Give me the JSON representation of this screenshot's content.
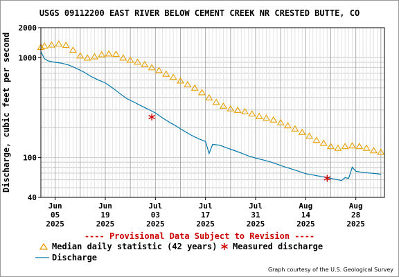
{
  "chart_data": {
    "type": "line",
    "title": "USGS 09112200 EAST RIVER BELOW CEMENT CREEK NR CRESTED BUTTE, CO",
    "ylabel": "Discharge, cubic feet per second",
    "y_scale": "log",
    "ylim": [
      40,
      2000
    ],
    "y_ticks": [
      {
        "value": 2000,
        "label": "2000"
      },
      {
        "value": 1000,
        "label": "1000"
      },
      {
        "value": 100,
        "label": "100"
      },
      {
        "value": 40,
        "label": "40"
      }
    ],
    "xlim": [
      "2025-06-01",
      "2025-09-05"
    ],
    "x_ticks": [
      {
        "date": "2025-06-05",
        "month": "Jun",
        "day": "05",
        "year": "2025"
      },
      {
        "date": "2025-06-19",
        "month": "Jun",
        "day": "19",
        "year": "2025"
      },
      {
        "date": "2025-07-03",
        "month": "Jul",
        "day": "03",
        "year": "2025"
      },
      {
        "date": "2025-07-17",
        "month": "Jul",
        "day": "17",
        "year": "2025"
      },
      {
        "date": "2025-07-31",
        "month": "Jul",
        "day": "31",
        "year": "2025"
      },
      {
        "date": "2025-08-14",
        "month": "Aug",
        "day": "14",
        "year": "2025"
      },
      {
        "date": "2025-08-28",
        "month": "Aug",
        "day": "28",
        "year": "2025"
      }
    ],
    "grid": true,
    "series": [
      {
        "name": "Median daily statistic (42 years)",
        "color": "#e8a000",
        "marker": "triangle",
        "points": [
          [
            "2025-06-01",
            1280
          ],
          [
            "2025-06-02",
            1320
          ],
          [
            "2025-06-04",
            1350
          ],
          [
            "2025-06-06",
            1380
          ],
          [
            "2025-06-08",
            1340
          ],
          [
            "2025-06-10",
            1200
          ],
          [
            "2025-06-12",
            1050
          ],
          [
            "2025-06-14",
            1000
          ],
          [
            "2025-06-16",
            1030
          ],
          [
            "2025-06-18",
            1080
          ],
          [
            "2025-06-20",
            1100
          ],
          [
            "2025-06-22",
            1090
          ],
          [
            "2025-06-24",
            1000
          ],
          [
            "2025-06-26",
            950
          ],
          [
            "2025-06-28",
            910
          ],
          [
            "2025-06-30",
            860
          ],
          [
            "2025-07-02",
            800
          ],
          [
            "2025-07-04",
            750
          ],
          [
            "2025-07-06",
            690
          ],
          [
            "2025-07-08",
            640
          ],
          [
            "2025-07-10",
            590
          ],
          [
            "2025-07-12",
            540
          ],
          [
            "2025-07-14",
            500
          ],
          [
            "2025-07-16",
            450
          ],
          [
            "2025-07-18",
            400
          ],
          [
            "2025-07-20",
            360
          ],
          [
            "2025-07-22",
            330
          ],
          [
            "2025-07-24",
            310
          ],
          [
            "2025-07-26",
            300
          ],
          [
            "2025-07-28",
            290
          ],
          [
            "2025-07-30",
            275
          ],
          [
            "2025-08-01",
            260
          ],
          [
            "2025-08-03",
            250
          ],
          [
            "2025-08-05",
            240
          ],
          [
            "2025-08-07",
            225
          ],
          [
            "2025-08-09",
            210
          ],
          [
            "2025-08-11",
            195
          ],
          [
            "2025-08-13",
            180
          ],
          [
            "2025-08-15",
            165
          ],
          [
            "2025-08-17",
            150
          ],
          [
            "2025-08-19",
            140
          ],
          [
            "2025-08-21",
            130
          ],
          [
            "2025-08-23",
            125
          ],
          [
            "2025-08-25",
            130
          ],
          [
            "2025-08-27",
            132
          ],
          [
            "2025-08-29",
            130
          ],
          [
            "2025-08-31",
            125
          ],
          [
            "2025-09-02",
            118
          ],
          [
            "2025-09-04",
            114
          ]
        ]
      },
      {
        "name": "Discharge",
        "color": "#0077aa",
        "points": [
          [
            "2025-06-01",
            1150
          ],
          [
            "2025-06-02",
            980
          ],
          [
            "2025-06-03",
            930
          ],
          [
            "2025-06-05",
            900
          ],
          [
            "2025-06-07",
            880
          ],
          [
            "2025-06-09",
            840
          ],
          [
            "2025-06-11",
            780
          ],
          [
            "2025-06-13",
            720
          ],
          [
            "2025-06-15",
            650
          ],
          [
            "2025-06-17",
            600
          ],
          [
            "2025-06-19",
            560
          ],
          [
            "2025-06-21",
            500
          ],
          [
            "2025-06-23",
            440
          ],
          [
            "2025-06-25",
            390
          ],
          [
            "2025-06-27",
            360
          ],
          [
            "2025-06-29",
            330
          ],
          [
            "2025-07-01",
            305
          ],
          [
            "2025-07-03",
            280
          ],
          [
            "2025-07-05",
            250
          ],
          [
            "2025-07-07",
            225
          ],
          [
            "2025-07-09",
            205
          ],
          [
            "2025-07-11",
            185
          ],
          [
            "2025-07-13",
            168
          ],
          [
            "2025-07-15",
            155
          ],
          [
            "2025-07-17",
            145
          ],
          [
            "2025-07-18",
            110
          ],
          [
            "2025-07-19",
            136
          ],
          [
            "2025-07-21",
            133
          ],
          [
            "2025-07-23",
            125
          ],
          [
            "2025-07-25",
            118
          ],
          [
            "2025-07-27",
            111
          ],
          [
            "2025-07-29",
            104
          ],
          [
            "2025-07-31",
            99
          ],
          [
            "2025-08-02",
            95
          ],
          [
            "2025-08-04",
            91
          ],
          [
            "2025-08-06",
            86
          ],
          [
            "2025-08-08",
            81
          ],
          [
            "2025-08-10",
            77
          ],
          [
            "2025-08-12",
            73
          ],
          [
            "2025-08-14",
            69
          ],
          [
            "2025-08-16",
            67
          ],
          [
            "2025-08-18",
            65
          ],
          [
            "2025-08-20",
            63
          ],
          [
            "2025-08-22",
            61
          ],
          [
            "2025-08-24",
            59
          ],
          [
            "2025-08-25",
            63
          ],
          [
            "2025-08-26",
            62
          ],
          [
            "2025-08-27",
            80
          ],
          [
            "2025-08-28",
            73
          ],
          [
            "2025-08-30",
            71
          ],
          [
            "2025-09-01",
            70
          ],
          [
            "2025-09-03",
            69
          ],
          [
            "2025-09-04",
            68
          ]
        ]
      },
      {
        "name": "Measured discharge",
        "color": "#cc0000",
        "marker": "asterisk",
        "points": [
          [
            "2025-07-02",
            255
          ],
          [
            "2025-08-20",
            62
          ]
        ]
      }
    ]
  },
  "provisional_note": "---- Provisional Data Subject to Revision ----",
  "legend": {
    "median": "Median daily statistic (42 years)",
    "measured": "Measured discharge",
    "discharge": "Discharge"
  },
  "credit": "Graph courtesy of the U.S. Geological Survey"
}
